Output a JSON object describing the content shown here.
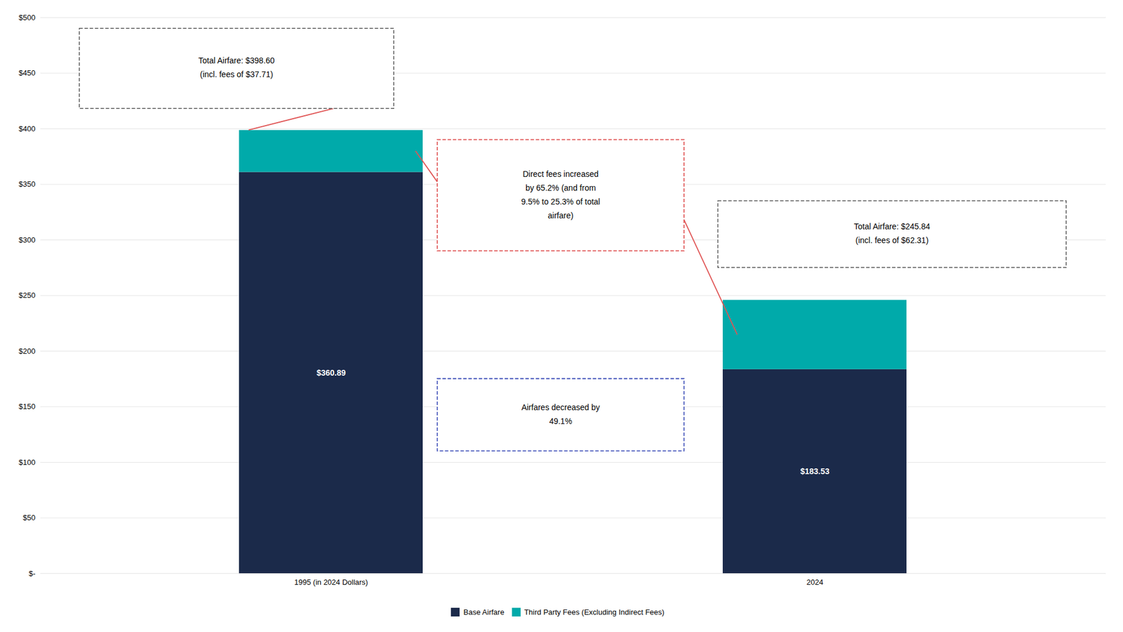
{
  "chart_data": {
    "type": "bar",
    "stacked": true,
    "categories": [
      "1995 (in 2024 Dollars)",
      "2024"
    ],
    "series": [
      {
        "name": "Base Airfare",
        "color": "#1b2a4a",
        "values": [
          360.89,
          183.53
        ],
        "data_labels": true,
        "value_labels": [
          "$360.89",
          "$183.53"
        ]
      },
      {
        "name": "Third Party Fees (Excluding Indirect Fees)",
        "color": "#00aaaa",
        "values": [
          37.71,
          62.31
        ]
      }
    ],
    "ylim": [
      0,
      500
    ],
    "yticks": [
      {
        "value": 0,
        "label": "$-"
      },
      {
        "value": 50,
        "label": "$50"
      },
      {
        "value": 100,
        "label": "$100"
      },
      {
        "value": 150,
        "label": "$150"
      },
      {
        "value": 200,
        "label": "$200"
      },
      {
        "value": 250,
        "label": "$250"
      },
      {
        "value": 300,
        "label": "$300"
      },
      {
        "value": 350,
        "label": "$350"
      },
      {
        "value": 400,
        "label": "$400"
      },
      {
        "value": 450,
        "label": "$450"
      },
      {
        "value": 500,
        "label": "$500"
      }
    ],
    "grid": true,
    "legend": "bottom",
    "annotations": [
      {
        "text": "Total Airfare: $398.60\n(incl. fees of $37.71)",
        "color": "#555555"
      },
      {
        "text": "Total Airfare: $245.84\n(incl. fees of $62.31)",
        "color": "#555555"
      },
      {
        "text": "Direct fees increased\nby 65.2% (and from\n9.5% to 25.3% of total\nairfare)",
        "color": "#e05555"
      },
      {
        "text": "Airfares decreased by\n49.1%",
        "color": "#4455bb"
      }
    ]
  }
}
